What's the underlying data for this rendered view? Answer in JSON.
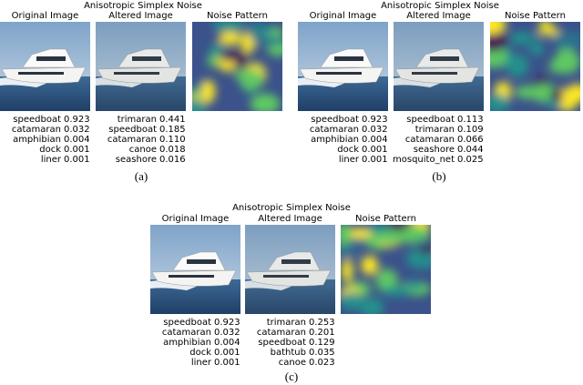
{
  "panels": [
    {
      "title": "Anisotropic Simplex Noise",
      "headers": {
        "original": "Original Image",
        "altered": "Altered Image",
        "noise": "Noise Pattern"
      },
      "original_predictions": [
        {
          "label": "speedboat",
          "score": "0.923"
        },
        {
          "label": "catamaran",
          "score": "0.032"
        },
        {
          "label": "amphibian",
          "score": "0.004"
        },
        {
          "label": "dock",
          "score": "0.001"
        },
        {
          "label": "liner",
          "score": "0.001"
        }
      ],
      "altered_predictions": [
        {
          "label": "trimaran",
          "score": "0.441"
        },
        {
          "label": "speedboat",
          "score": "0.185"
        },
        {
          "label": "catamaran",
          "score": "0.110"
        },
        {
          "label": "canoe",
          "score": "0.018"
        },
        {
          "label": "seashore",
          "score": "0.016"
        }
      ],
      "caption": "(a)"
    },
    {
      "title": "Anisotropic Simplex Noise",
      "headers": {
        "original": "Original Image",
        "altered": "Altered Image",
        "noise": "Noise Pattern"
      },
      "original_predictions": [
        {
          "label": "speedboat",
          "score": "0.923"
        },
        {
          "label": "catamaran",
          "score": "0.032"
        },
        {
          "label": "amphibian",
          "score": "0.004"
        },
        {
          "label": "dock",
          "score": "0.001"
        },
        {
          "label": "liner",
          "score": "0.001"
        }
      ],
      "altered_predictions": [
        {
          "label": "speedboat",
          "score": "0.113"
        },
        {
          "label": "trimaran",
          "score": "0.109"
        },
        {
          "label": "catamaran",
          "score": "0.066"
        },
        {
          "label": "seashore",
          "score": "0.044"
        },
        {
          "label": "mosquito_net",
          "score": "0.025"
        }
      ],
      "caption": "(b)"
    },
    {
      "title": "Anisotropic Simplex Noise",
      "headers": {
        "original": "Original Image",
        "altered": "Altered Image",
        "noise": "Noise Pattern"
      },
      "original_predictions": [
        {
          "label": "speedboat",
          "score": "0.923"
        },
        {
          "label": "catamaran",
          "score": "0.032"
        },
        {
          "label": "amphibian",
          "score": "0.004"
        },
        {
          "label": "dock",
          "score": "0.001"
        },
        {
          "label": "liner",
          "score": "0.001"
        }
      ],
      "altered_predictions": [
        {
          "label": "trimaran",
          "score": "0.253"
        },
        {
          "label": "catamaran",
          "score": "0.201"
        },
        {
          "label": "speedboat",
          "score": "0.129"
        },
        {
          "label": "bathtub",
          "score": "0.035"
        },
        {
          "label": "canoe",
          "score": "0.023"
        }
      ],
      "caption": "(c)"
    }
  ]
}
